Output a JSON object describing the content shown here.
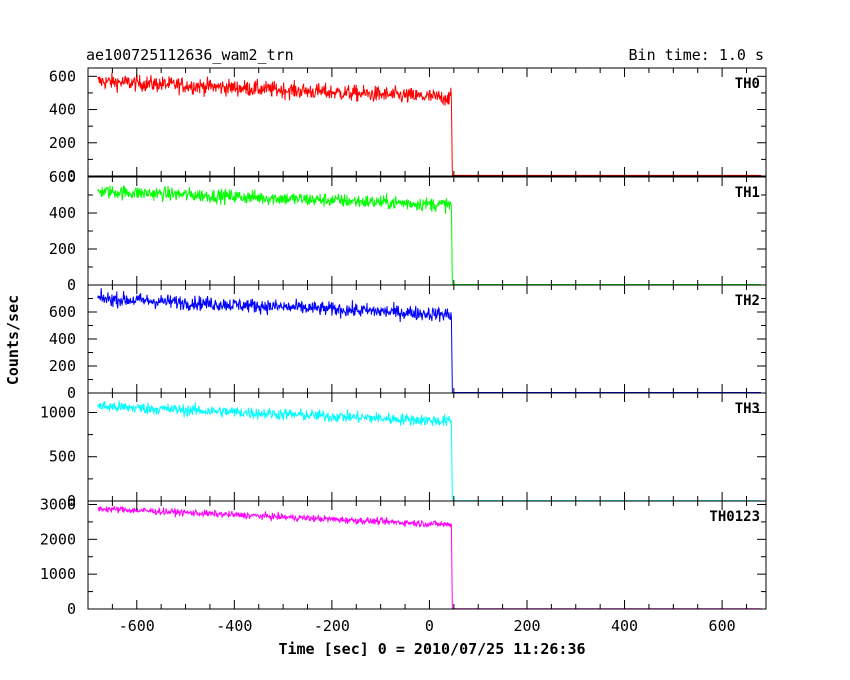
{
  "chart_data": {
    "type": "line",
    "title": "ae100725112636_wam2_trn",
    "subtitle": "Bin time: 1.0 s",
    "xlabel": "Time [sec] 0 = 2010/07/25 11:26:36",
    "ylabel": "Counts/sec",
    "xlim": [
      -700,
      690
    ],
    "x_ticks": [
      -600,
      -400,
      -200,
      0,
      200,
      400,
      600
    ],
    "x_range": [
      -680,
      680
    ],
    "drop_time": 45,
    "grid": false,
    "panels": [
      {
        "name": "TH0",
        "color": "#ff0000",
        "ylim": [
          0,
          650
        ],
        "y_ticks": [
          0,
          200,
          400,
          600
        ],
        "start_level": 570,
        "end_level": 470,
        "noise": 35,
        "after_level": 0
      },
      {
        "name": "TH1",
        "color": "#00ff00",
        "ylim": [
          0,
          600
        ],
        "y_ticks": [
          0,
          200,
          400,
          600
        ],
        "start_level": 520,
        "end_level": 445,
        "noise": 28,
        "after_level": 0
      },
      {
        "name": "TH2",
        "color": "#0000ff",
        "ylim": [
          0,
          800
        ],
        "y_ticks": [
          0,
          200,
          400,
          600
        ],
        "start_level": 700,
        "end_level": 580,
        "noise": 38,
        "after_level": 0
      },
      {
        "name": "TH3",
        "color": "#00ffff",
        "ylim": [
          0,
          1220
        ],
        "y_ticks": [
          0,
          500,
          1000
        ],
        "start_level": 1070,
        "end_level": 900,
        "noise": 48,
        "after_level": 0
      },
      {
        "name": "TH0123",
        "color": "#ff00ff",
        "ylim": [
          0,
          3100
        ],
        "y_ticks": [
          0,
          1000,
          2000,
          3000
        ],
        "start_level": 2880,
        "end_level": 2420,
        "noise": 70,
        "after_level": 0
      }
    ]
  }
}
